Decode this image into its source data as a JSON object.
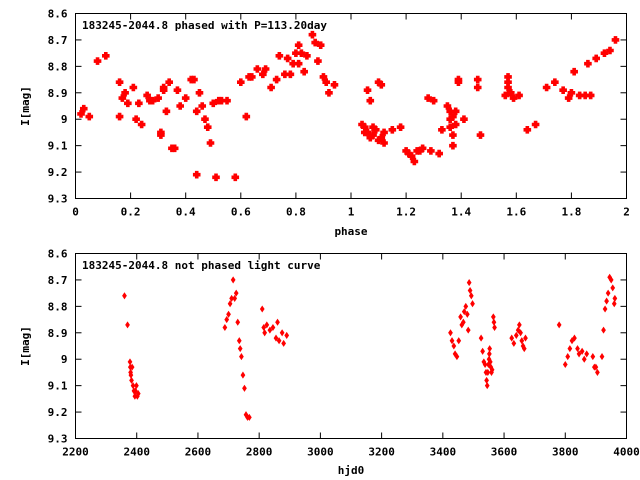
{
  "chart_data": [
    {
      "type": "scatter",
      "title": "183245-2044.8 phased with P=113.20day",
      "xlabel": "phase",
      "ylabel": "I[mag]",
      "xlim": [
        0,
        2
      ],
      "ylim": [
        9.3,
        8.6
      ],
      "y_reversed": true,
      "xticks": [
        "0",
        "0.2",
        "0.4",
        "0.6",
        "0.8",
        "1",
        "1.2",
        "1.4",
        "1.6",
        "1.8",
        "2"
      ],
      "yticks": [
        "8.6",
        "8.7",
        "8.8",
        "8.9",
        "9",
        "9.1",
        "9.2",
        "9.3"
      ],
      "grid": false,
      "marker_color": "#ff0000",
      "points": [
        [
          0.02,
          8.98
        ],
        [
          0.03,
          8.96
        ],
        [
          0.05,
          8.99
        ],
        [
          0.08,
          8.78
        ],
        [
          0.11,
          8.76
        ],
        [
          0.16,
          8.86
        ],
        [
          0.16,
          8.99
        ],
        [
          0.17,
          8.92
        ],
        [
          0.18,
          8.9
        ],
        [
          0.19,
          8.94
        ],
        [
          0.21,
          8.88
        ],
        [
          0.22,
          9.0
        ],
        [
          0.23,
          8.94
        ],
        [
          0.24,
          9.02
        ],
        [
          0.26,
          8.91
        ],
        [
          0.27,
          8.93
        ],
        [
          0.28,
          8.93
        ],
        [
          0.3,
          8.92
        ],
        [
          0.31,
          9.05
        ],
        [
          0.31,
          9.06
        ],
        [
          0.32,
          8.88
        ],
        [
          0.32,
          8.89
        ],
        [
          0.33,
          8.97
        ],
        [
          0.34,
          8.86
        ],
        [
          0.35,
          9.11
        ],
        [
          0.36,
          9.11
        ],
        [
          0.37,
          8.89
        ],
        [
          0.38,
          8.95
        ],
        [
          0.4,
          8.92
        ],
        [
          0.42,
          8.85
        ],
        [
          0.43,
          8.85
        ],
        [
          0.44,
          9.21
        ],
        [
          0.44,
          8.97
        ],
        [
          0.45,
          8.9
        ],
        [
          0.46,
          8.95
        ],
        [
          0.47,
          9.0
        ],
        [
          0.48,
          9.03
        ],
        [
          0.49,
          9.09
        ],
        [
          0.5,
          8.94
        ],
        [
          0.51,
          9.22
        ],
        [
          0.52,
          8.93
        ],
        [
          0.53,
          8.93
        ],
        [
          0.55,
          8.93
        ],
        [
          0.58,
          9.22
        ],
        [
          0.6,
          8.86
        ],
        [
          0.62,
          8.99
        ],
        [
          0.63,
          8.84
        ],
        [
          0.64,
          8.84
        ],
        [
          0.66,
          8.81
        ],
        [
          0.68,
          8.83
        ],
        [
          0.69,
          8.81
        ],
        [
          0.71,
          8.88
        ],
        [
          0.73,
          8.85
        ],
        [
          0.74,
          8.76
        ],
        [
          0.76,
          8.83
        ],
        [
          0.77,
          8.77
        ],
        [
          0.78,
          8.83
        ],
        [
          0.79,
          8.79
        ],
        [
          0.8,
          8.75
        ],
        [
          0.81,
          8.72
        ],
        [
          0.81,
          8.79
        ],
        [
          0.82,
          8.75
        ],
        [
          0.83,
          8.82
        ],
        [
          0.84,
          8.76
        ],
        [
          0.86,
          8.68
        ],
        [
          0.87,
          8.71
        ],
        [
          0.88,
          8.78
        ],
        [
          0.89,
          8.72
        ],
        [
          0.9,
          8.84
        ],
        [
          0.91,
          8.86
        ],
        [
          0.92,
          8.9
        ],
        [
          0.94,
          8.87
        ],
        [
          1.04,
          9.02
        ],
        [
          1.05,
          9.03
        ],
        [
          1.05,
          9.05
        ],
        [
          1.06,
          8.89
        ],
        [
          1.06,
          9.05
        ],
        [
          1.07,
          8.93
        ],
        [
          1.07,
          9.07
        ],
        [
          1.08,
          9.03
        ],
        [
          1.08,
          9.06
        ],
        [
          1.09,
          9.04
        ],
        [
          1.1,
          8.86
        ],
        [
          1.1,
          9.08
        ],
        [
          1.11,
          9.07
        ],
        [
          1.11,
          8.87
        ],
        [
          1.12,
          9.09
        ],
        [
          1.12,
          9.05
        ],
        [
          1.15,
          9.04
        ],
        [
          1.18,
          9.03
        ],
        [
          1.2,
          9.12
        ],
        [
          1.21,
          9.13
        ],
        [
          1.22,
          9.14
        ],
        [
          1.23,
          9.16
        ],
        [
          1.24,
          9.12
        ],
        [
          1.25,
          9.12
        ],
        [
          1.26,
          9.11
        ],
        [
          1.28,
          8.92
        ],
        [
          1.29,
          9.12
        ],
        [
          1.3,
          8.93
        ],
        [
          1.32,
          9.13
        ],
        [
          1.33,
          9.04
        ],
        [
          1.35,
          8.95
        ],
        [
          1.36,
          8.97
        ],
        [
          1.36,
          9.0
        ],
        [
          1.36,
          9.03
        ],
        [
          1.37,
          8.99
        ],
        [
          1.37,
          9.06
        ],
        [
          1.37,
          9.1
        ],
        [
          1.38,
          8.97
        ],
        [
          1.38,
          9.02
        ],
        [
          1.39,
          8.86
        ],
        [
          1.39,
          8.85
        ],
        [
          1.41,
          9.0
        ],
        [
          1.46,
          8.85
        ],
        [
          1.46,
          8.88
        ],
        [
          1.47,
          9.06
        ],
        [
          1.56,
          8.91
        ],
        [
          1.57,
          8.84
        ],
        [
          1.57,
          8.86
        ],
        [
          1.57,
          8.88
        ],
        [
          1.58,
          8.9
        ],
        [
          1.59,
          8.92
        ],
        [
          1.61,
          8.91
        ],
        [
          1.64,
          9.04
        ],
        [
          1.67,
          9.02
        ],
        [
          1.71,
          8.88
        ],
        [
          1.74,
          8.86
        ],
        [
          1.77,
          8.89
        ],
        [
          1.79,
          8.92
        ],
        [
          1.8,
          8.9
        ],
        [
          1.81,
          8.82
        ],
        [
          1.83,
          8.91
        ],
        [
          1.85,
          8.91
        ],
        [
          1.86,
          8.79
        ],
        [
          1.87,
          8.91
        ],
        [
          1.89,
          8.77
        ],
        [
          1.92,
          8.75
        ],
        [
          1.94,
          8.74
        ],
        [
          1.96,
          8.7
        ]
      ]
    },
    {
      "type": "scatter",
      "title": "183245-2044.8 not phased light curve",
      "xlabel": "hjd0",
      "ylabel": "I[mag]",
      "xlim": [
        2200,
        4000
      ],
      "ylim": [
        9.3,
        8.6
      ],
      "y_reversed": true,
      "xticks": [
        "2200",
        "2400",
        "2600",
        "2800",
        "3000",
        "3200",
        "3400",
        "3600",
        "3800",
        "4000"
      ],
      "yticks": [
        "8.6",
        "8.7",
        "8.8",
        "8.9",
        "9",
        "9.1",
        "9.2",
        "9.3"
      ],
      "grid": false,
      "marker_color": "#ff0000",
      "points": [
        [
          2360,
          8.76
        ],
        [
          2370,
          8.87
        ],
        [
          2378,
          9.01
        ],
        [
          2379,
          9.03
        ],
        [
          2380,
          9.05
        ],
        [
          2381,
          9.06
        ],
        [
          2383,
          9.08
        ],
        [
          2385,
          9.03
        ],
        [
          2388,
          9.1
        ],
        [
          2391,
          9.12
        ],
        [
          2394,
          9.14
        ],
        [
          2396,
          9.12
        ],
        [
          2399,
          9.1
        ],
        [
          2402,
          9.14
        ],
        [
          2405,
          9.13
        ],
        [
          2688,
          8.88
        ],
        [
          2694,
          8.85
        ],
        [
          2700,
          8.83
        ],
        [
          2705,
          8.79
        ],
        [
          2710,
          8.77
        ],
        [
          2715,
          8.7
        ],
        [
          2720,
          8.77
        ],
        [
          2725,
          8.75
        ],
        [
          2730,
          8.86
        ],
        [
          2735,
          8.93
        ],
        [
          2738,
          8.96
        ],
        [
          2742,
          8.99
        ],
        [
          2747,
          9.06
        ],
        [
          2752,
          9.11
        ],
        [
          2757,
          9.21
        ],
        [
          2762,
          9.22
        ],
        [
          2768,
          9.22
        ],
        [
          2810,
          8.81
        ],
        [
          2815,
          8.88
        ],
        [
          2818,
          8.9
        ],
        [
          2825,
          8.87
        ],
        [
          2835,
          8.89
        ],
        [
          2845,
          8.88
        ],
        [
          2855,
          8.92
        ],
        [
          2860,
          8.86
        ],
        [
          2865,
          8.93
        ],
        [
          2875,
          8.9
        ],
        [
          2880,
          8.94
        ],
        [
          2890,
          8.91
        ],
        [
          3425,
          8.9
        ],
        [
          3430,
          8.93
        ],
        [
          3436,
          8.95
        ],
        [
          3440,
          8.98
        ],
        [
          3446,
          8.99
        ],
        [
          3452,
          8.93
        ],
        [
          3458,
          8.84
        ],
        [
          3462,
          8.87
        ],
        [
          3467,
          8.86
        ],
        [
          3470,
          8.82
        ],
        [
          3475,
          8.8
        ],
        [
          3480,
          8.83
        ],
        [
          3483,
          8.89
        ],
        [
          3486,
          8.71
        ],
        [
          3489,
          8.74
        ],
        [
          3493,
          8.76
        ],
        [
          3497,
          8.79
        ],
        [
          3525,
          8.92
        ],
        [
          3530,
          8.97
        ],
        [
          3534,
          9.01
        ],
        [
          3538,
          9.02
        ],
        [
          3541,
          9.05
        ],
        [
          3543,
          9.08
        ],
        [
          3545,
          9.1
        ],
        [
          3547,
          9.05
        ],
        [
          3549,
          9.02
        ],
        [
          3551,
          9.0
        ],
        [
          3552,
          8.98
        ],
        [
          3553,
          8.96
        ],
        [
          3555,
          9.01
        ],
        [
          3557,
          9.03
        ],
        [
          3559,
          9.05
        ],
        [
          3561,
          9.04
        ],
        [
          3565,
          8.84
        ],
        [
          3567,
          8.86
        ],
        [
          3569,
          8.88
        ],
        [
          3625,
          8.92
        ],
        [
          3632,
          8.94
        ],
        [
          3640,
          8.91
        ],
        [
          3646,
          8.89
        ],
        [
          3650,
          8.87
        ],
        [
          3654,
          8.9
        ],
        [
          3658,
          8.93
        ],
        [
          3662,
          8.95
        ],
        [
          3666,
          8.96
        ],
        [
          3670,
          8.92
        ],
        [
          3780,
          8.87
        ],
        [
          3800,
          9.02
        ],
        [
          3808,
          8.99
        ],
        [
          3815,
          8.96
        ],
        [
          3822,
          8.93
        ],
        [
          3830,
          8.92
        ],
        [
          3840,
          8.96
        ],
        [
          3845,
          8.98
        ],
        [
          3855,
          8.97
        ],
        [
          3862,
          9.0
        ],
        [
          3870,
          8.98
        ],
        [
          3890,
          8.99
        ],
        [
          3895,
          9.03
        ],
        [
          3900,
          9.03
        ],
        [
          3905,
          9.05
        ],
        [
          3920,
          8.99
        ],
        [
          3925,
          8.89
        ],
        [
          3930,
          8.81
        ],
        [
          3935,
          8.78
        ],
        [
          3940,
          8.75
        ],
        [
          3945,
          8.69
        ],
        [
          3950,
          8.7
        ],
        [
          3955,
          8.73
        ],
        [
          3960,
          8.79
        ],
        [
          3962,
          8.77
        ]
      ]
    }
  ]
}
